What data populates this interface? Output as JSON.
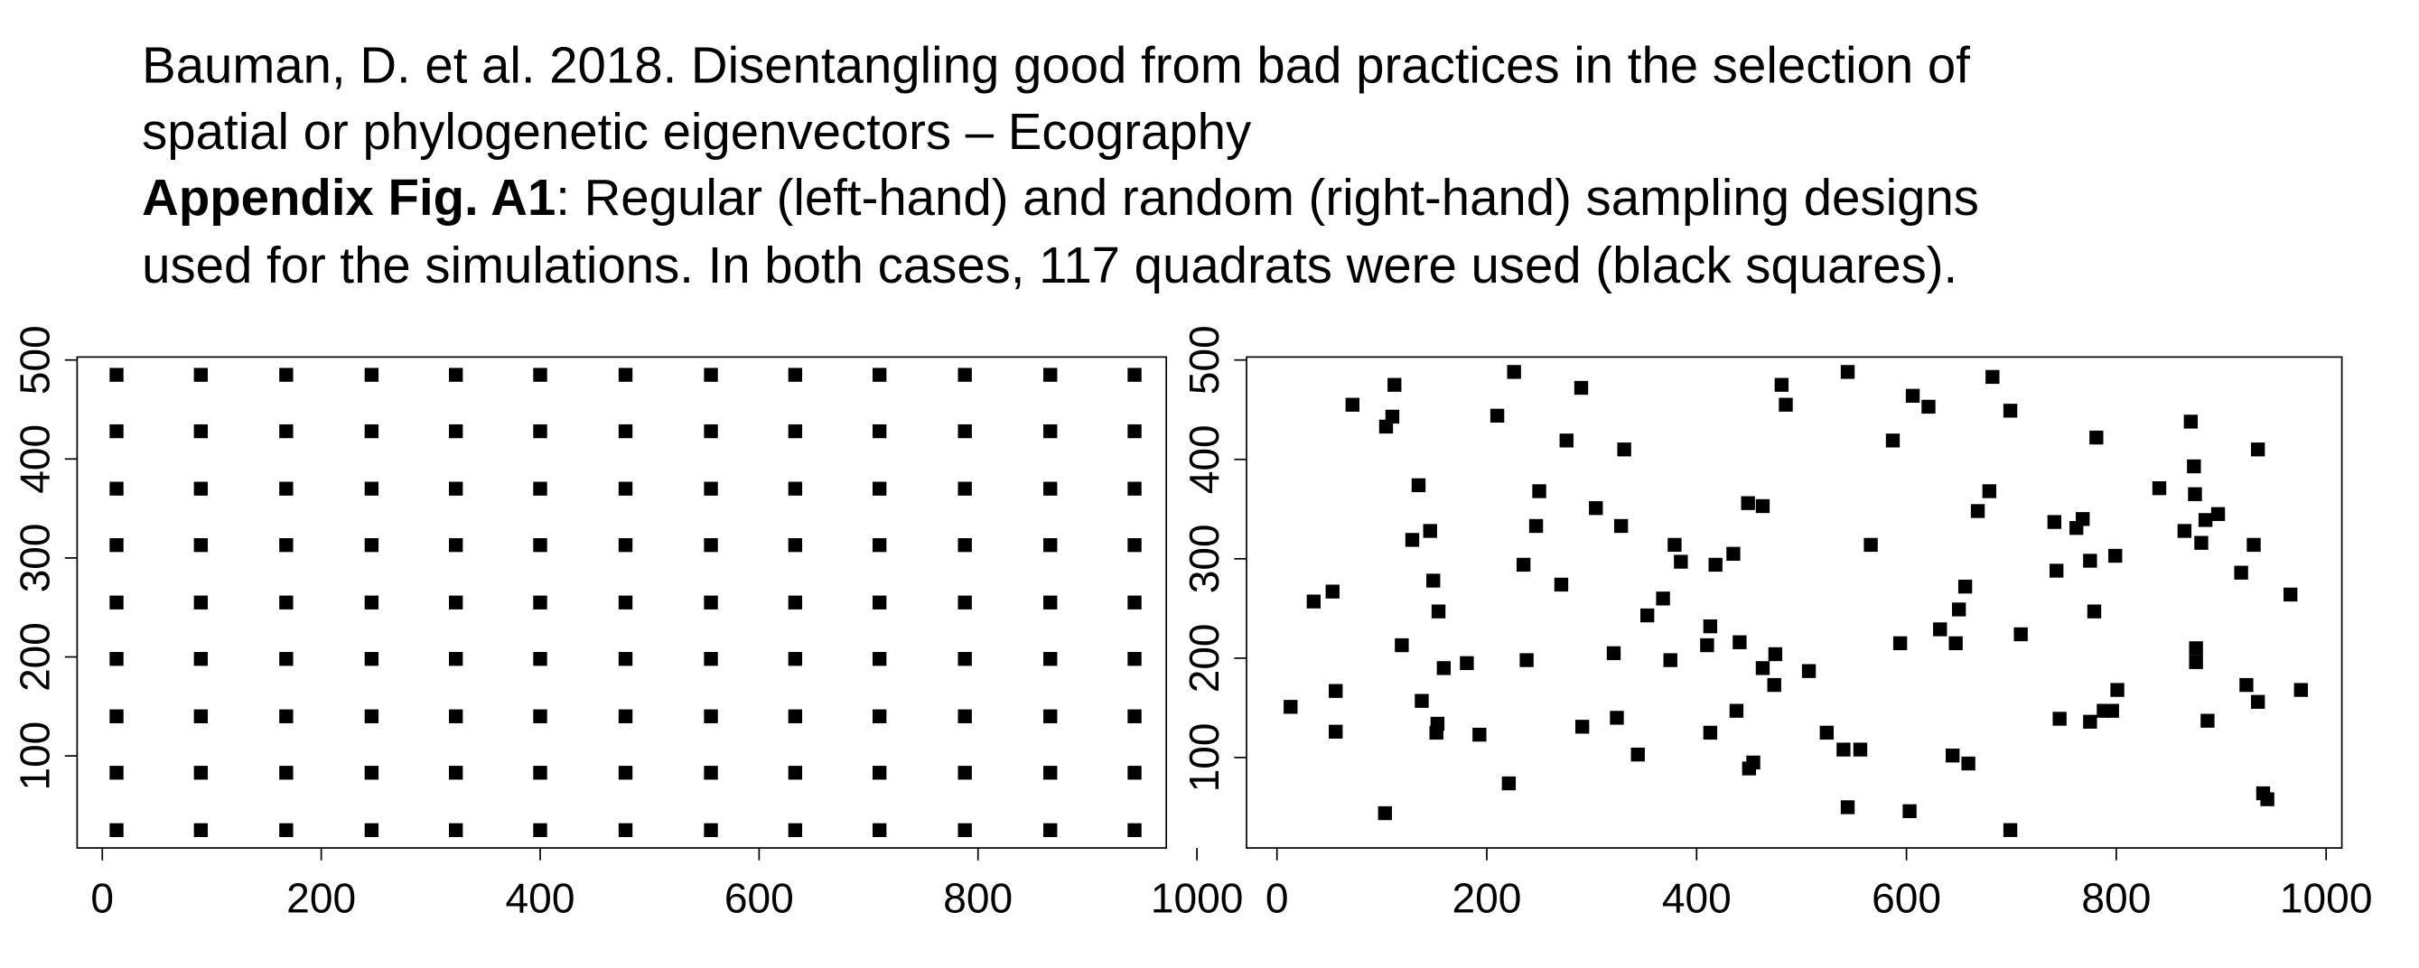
{
  "header": {
    "lines": [
      "Bauman, D. et al. 2018. Disentangling good from bad practices in the selection of",
      "spatial or phylogenetic eigenvectors – Ecography"
    ],
    "caption_label": "Appendix Fig. A1",
    "caption_lines": [
      ": Regular (left-hand) and random (right-hand) sampling designs",
      "used for the simulations. In both cases, 117 quadrats were used (black squares)."
    ]
  },
  "chart_data": [
    {
      "type": "scatter",
      "color": "#000000",
      "x": [
        13,
        90,
        168,
        246,
        323,
        400,
        478,
        556,
        633,
        710,
        788,
        866,
        943,
        13,
        90,
        168,
        246,
        323,
        400,
        478,
        556,
        633,
        710,
        788,
        866,
        943,
        13,
        90,
        168,
        246,
        323,
        400,
        478,
        556,
        633,
        710,
        788,
        866,
        943,
        13,
        90,
        168,
        246,
        323,
        400,
        478,
        556,
        633,
        710,
        788,
        866,
        943,
        13,
        90,
        168,
        246,
        323,
        400,
        478,
        556,
        633,
        710,
        788,
        866,
        943,
        13,
        90,
        168,
        246,
        323,
        400,
        478,
        556,
        633,
        710,
        788,
        866,
        943,
        13,
        90,
        168,
        246,
        323,
        400,
        478,
        556,
        633,
        710,
        788,
        866,
        943,
        13,
        90,
        168,
        246,
        323,
        400,
        478,
        556,
        633,
        710,
        788,
        866,
        943,
        13,
        90,
        168,
        246,
        323,
        400,
        478,
        556,
        633,
        710,
        788,
        866,
        943
      ],
      "y": [
        25,
        25,
        25,
        25,
        25,
        25,
        25,
        25,
        25,
        25,
        25,
        25,
        25,
        83,
        83,
        83,
        83,
        83,
        83,
        83,
        83,
        83,
        83,
        83,
        83,
        83,
        140,
        140,
        140,
        140,
        140,
        140,
        140,
        140,
        140,
        140,
        140,
        140,
        140,
        198,
        198,
        198,
        198,
        198,
        198,
        198,
        198,
        198,
        198,
        198,
        198,
        198,
        255,
        255,
        255,
        255,
        255,
        255,
        255,
        255,
        255,
        255,
        255,
        255,
        255,
        313,
        313,
        313,
        313,
        313,
        313,
        313,
        313,
        313,
        313,
        313,
        313,
        313,
        370,
        370,
        370,
        370,
        370,
        370,
        370,
        370,
        370,
        370,
        370,
        370,
        370,
        428,
        428,
        428,
        428,
        428,
        428,
        428,
        428,
        428,
        428,
        428,
        428,
        428,
        485,
        485,
        485,
        485,
        485,
        485,
        485,
        485,
        485,
        485,
        485,
        485,
        485
      ],
      "xlim": [
        -23,
        972
      ],
      "ylim": [
        7,
        503
      ],
      "xticks": [
        0,
        200,
        400,
        600,
        800,
        1000
      ],
      "yticks": [
        100,
        200,
        300,
        400,
        500
      ]
    },
    {
      "type": "scatter",
      "color": "#000000",
      "x": [
        13,
        35,
        53,
        56,
        56,
        72,
        103,
        104,
        110,
        112,
        119,
        129,
        135,
        138,
        146,
        149,
        152,
        153,
        154,
        159,
        181,
        193,
        210,
        221,
        226,
        235,
        238,
        247,
        250,
        271,
        276,
        290,
        291,
        304,
        321,
        324,
        328,
        331,
        344,
        353,
        368,
        375,
        379,
        385,
        410,
        413,
        413,
        418,
        435,
        438,
        441,
        449,
        450,
        454,
        463,
        463,
        474,
        475,
        481,
        485,
        507,
        524,
        540,
        544,
        544,
        556,
        566,
        587,
        594,
        603,
        606,
        621,
        632,
        644,
        647,
        650,
        656,
        659,
        668,
        679,
        682,
        699,
        699,
        709,
        741,
        743,
        746,
        768,
        775,
        775,
        779,
        781,
        788,
        796,
        799,
        801,
        841,
        865,
        871,
        874,
        875,
        876,
        876,
        881,
        885,
        887,
        897,
        919,
        924,
        931,
        935,
        935,
        940,
        944,
        966,
        976,
        762
      ],
      "y": [
        151,
        257,
        267,
        167,
        126,
        455,
        44,
        433,
        443,
        475,
        213,
        319,
        374,
        157,
        328,
        278,
        125,
        134,
        247,
        190,
        195,
        123,
        444,
        74,
        488,
        294,
        198,
        333,
        368,
        274,
        419,
        472,
        131,
        351,
        205,
        140,
        333,
        410,
        103,
        243,
        260,
        198,
        314,
        297,
        213,
        232,
        125,
        294,
        305,
        147,
        216,
        356,
        89,
        95,
        353,
        190,
        173,
        204,
        475,
        455,
        187,
        125,
        108,
        488,
        50,
        108,
        314,
        419,
        215,
        46,
        464,
        453,
        229,
        102,
        215,
        249,
        272,
        94,
        348,
        368,
        483,
        449,
        27,
        224,
        337,
        288,
        139,
        340,
        136,
        298,
        247,
        422,
        147,
        147,
        303,
        168,
        371,
        328,
        438,
        393,
        365,
        210,
        196,
        316,
        339,
        137,
        345,
        286,
        173,
        314,
        410,
        156,
        64,
        58,
        264,
        168,
        331
      ],
      "xlim": [
        -29,
        1015
      ],
      "ylim": [
        9,
        503
      ],
      "xticks": [
        0,
        200,
        400,
        600,
        800,
        1000
      ],
      "yticks": [
        100,
        200,
        300,
        400,
        500
      ]
    }
  ]
}
